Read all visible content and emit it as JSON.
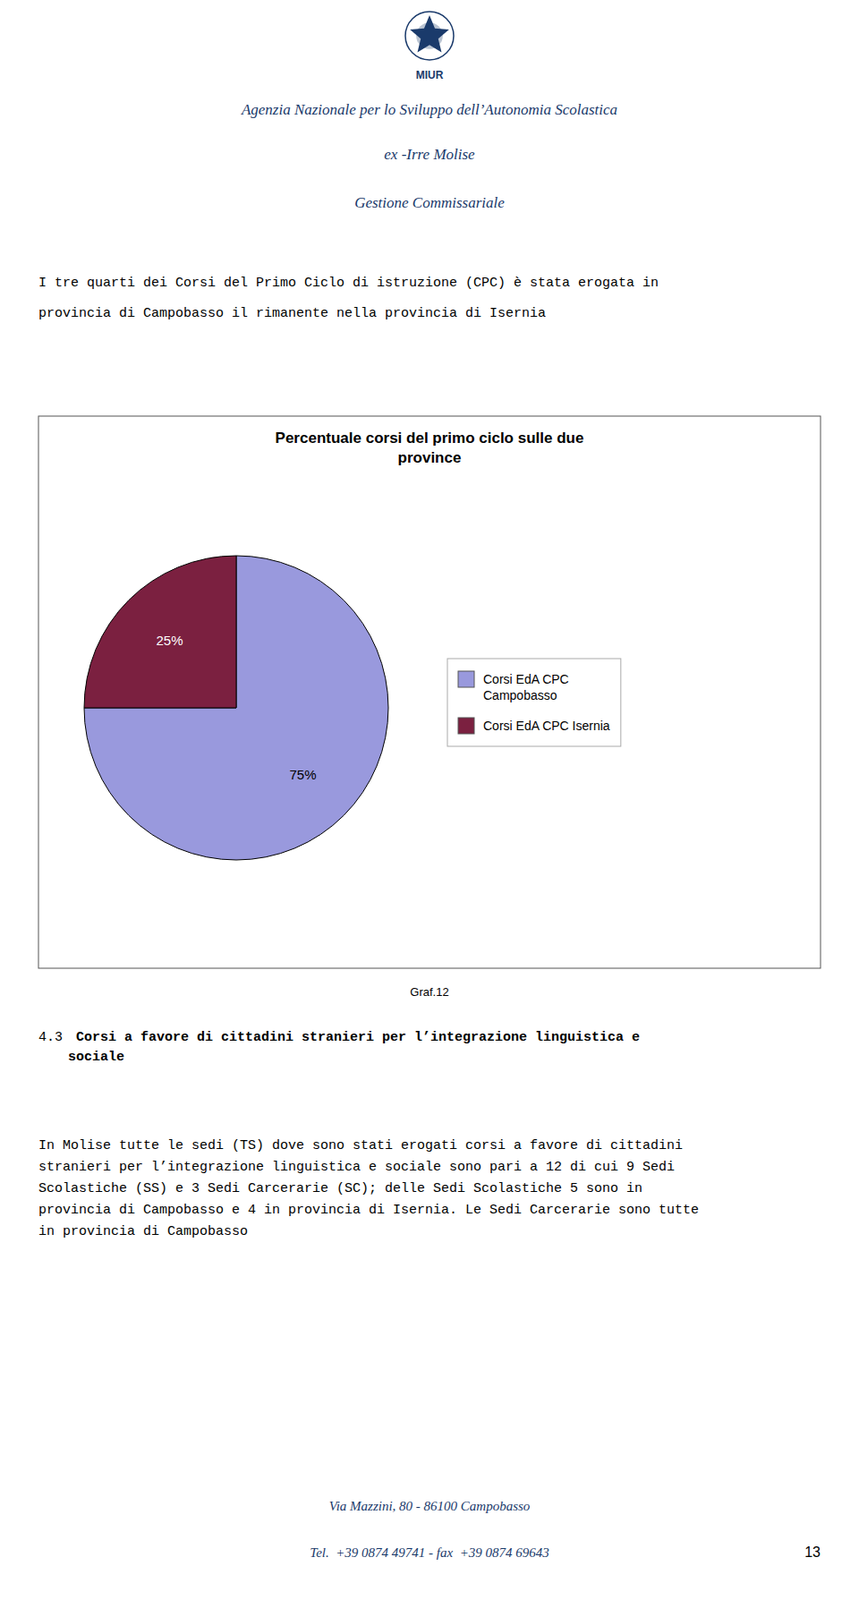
{
  "chart_data": {
    "type": "pie",
    "title": "Percentuale corsi del primo ciclo sulle due\nprovince",
    "categories": [
      "Corsi EdA CPC\nCampobasso",
      "Corsi EdA CPC Isernia"
    ],
    "values": [
      75,
      25
    ],
    "value_labels": [
      "75%",
      "25%"
    ],
    "colors": [
      "#9999dd",
      "#7b2040"
    ],
    "data_labels": true,
    "legend": "right"
  },
  "page": {
    "background": "#ffffff",
    "logo_label": "MIUR",
    "header_lines": [
      "Agenzia Nazionale per lo Sviluppo dell’Autonomia Scolastica",
      "ex -Irre Molise",
      "Gestione Commissariale"
    ],
    "header_color": "#1a3a6b",
    "intro_lines": [
      "I tre quarti dei Corsi del Primo Ciclo di istruzione (CPC) è stata erogata in",
      "provincia di Campobasso il rimanente nella provincia di Isernia"
    ],
    "figure_label": "Graf.12",
    "section_number": "4.3",
    "section_heading": " Corsi a favore di cittadini stranieri per l’integrazione linguistica e\nsociale",
    "body_lines": [
      "In Molise tutte le sedi (TS) dove sono stati erogati corsi a favore di cittadini",
      "stranieri per l’integrazione linguistica e sociale sono pari a 12 di cui 9 Sedi",
      "Scolastiche (SS) e 3 Sedi Carcerarie (SC); delle Sedi Scolastiche 5 sono in",
      "provincia di Campobasso e 4 in provincia di Isernia. Le Sedi Carcerarie sono tutte",
      "in provincia di Campobasso"
    ],
    "footer_lines": [
      "Via Mazzini, 80 - 86100 Campobasso",
      "Tel.  +39 0874 49741 - fax  +39 0874 69643"
    ],
    "footer_color": "#1a3a6b",
    "page_number": "13"
  }
}
